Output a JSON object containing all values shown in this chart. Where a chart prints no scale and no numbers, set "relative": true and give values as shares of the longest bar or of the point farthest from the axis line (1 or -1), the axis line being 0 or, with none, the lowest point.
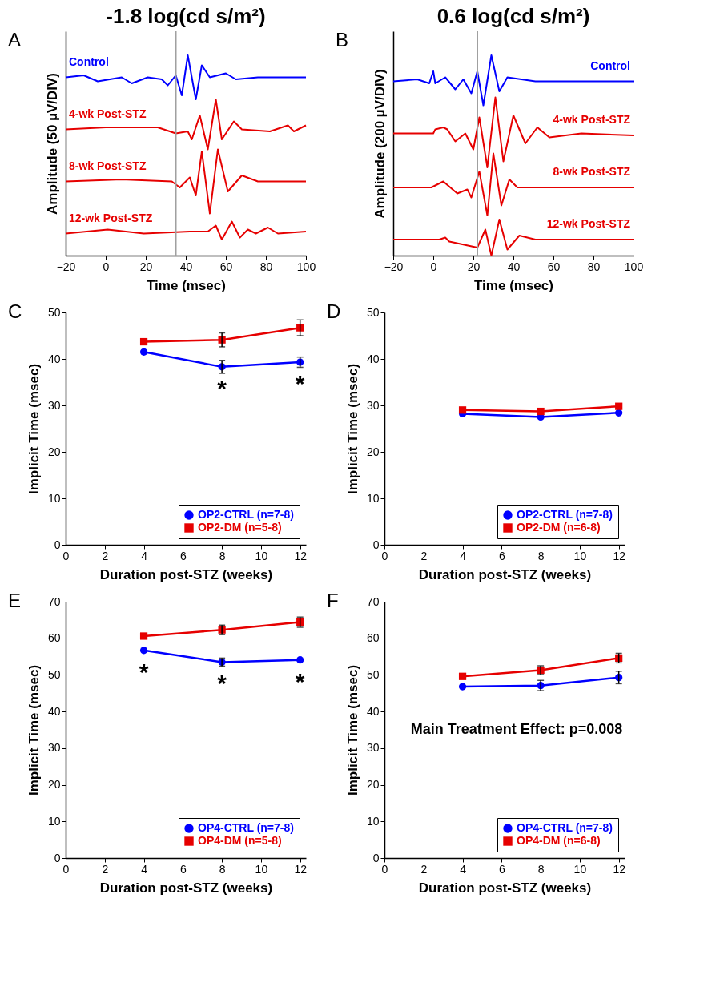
{
  "chart_data": [
    {
      "type": "line",
      "relative": true,
      "title": "-1.8 log(cd s/m²)",
      "xlabel": "Time (msec)",
      "ylabel": "Amplitude (50 µV/DIV)",
      "annotations": [
        "A"
      ],
      "xlim": [
        -20,
        100
      ],
      "xticks": [
        -20,
        0,
        20,
        40,
        60,
        80,
        100
      ],
      "ref_lines": [
        {
          "axis": "x",
          "value": 35,
          "color": "#a0a0a0"
        }
      ],
      "series": [
        {
          "name": "Control",
          "color": "#0000ff",
          "x": [
            -20,
            -11,
            -4,
            8,
            13,
            21,
            28,
            31,
            35,
            38,
            41,
            45,
            48,
            52,
            60,
            65,
            76,
            88,
            100
          ],
          "values": [
            0.89,
            0.9,
            0.87,
            0.89,
            0.86,
            0.89,
            0.88,
            0.85,
            0.9,
            0.8,
            1,
            0.78,
            0.95,
            0.89,
            0.91,
            0.88,
            0.89,
            0.89,
            0.89
          ]
        },
        {
          "name": "4-wk Post-STZ",
          "color": "#e60000",
          "x": [
            -20,
            0,
            26,
            35,
            41,
            43,
            47,
            51,
            55,
            58,
            64,
            68,
            82,
            91,
            94,
            100
          ],
          "values": [
            0.63,
            0.64,
            0.64,
            0.61,
            0.62,
            0.58,
            0.7,
            0.53,
            0.78,
            0.58,
            0.67,
            0.63,
            0.62,
            0.65,
            0.62,
            0.65
          ]
        },
        {
          "name": "8-wk Post-STZ",
          "color": "#e60000",
          "x": [
            -20,
            8,
            33,
            37,
            42,
            45,
            48,
            52,
            56,
            61,
            68,
            76,
            100
          ],
          "values": [
            0.37,
            0.38,
            0.37,
            0.34,
            0.39,
            0.3,
            0.52,
            0.21,
            0.53,
            0.32,
            0.4,
            0.37,
            0.37
          ]
        },
        {
          "name": "12-wk Post-STZ",
          "color": "#e60000",
          "x": [
            -20,
            1,
            19,
            42,
            51,
            55,
            58,
            63,
            67,
            71,
            75,
            81,
            86,
            100
          ],
          "values": [
            0.11,
            0.13,
            0.11,
            0.12,
            0.12,
            0.15,
            0.08,
            0.17,
            0.09,
            0.13,
            0.11,
            0.14,
            0.11,
            0.12
          ]
        }
      ]
    },
    {
      "type": "line",
      "relative": true,
      "title": "0.6 log(cd s/m²)",
      "xlabel": "Time (msec)",
      "ylabel": "Amplitude (200 µV/DIV)",
      "annotations": [
        "B"
      ],
      "xlim": [
        -20,
        100
      ],
      "xticks": [
        -20,
        0,
        20,
        40,
        60,
        80,
        100
      ],
      "ref_lines": [
        {
          "axis": "x",
          "value": 22,
          "color": "#a0a0a0"
        }
      ],
      "series": [
        {
          "name": "Control",
          "color": "#0000ff",
          "x": [
            -20,
            -8,
            -2,
            0,
            1,
            6,
            11,
            15,
            19,
            22,
            25,
            29,
            33,
            37,
            51,
            74,
            100
          ],
          "values": [
            0.87,
            0.88,
            0.86,
            0.92,
            0.86,
            0.89,
            0.83,
            0.88,
            0.81,
            0.92,
            0.75,
            1,
            0.82,
            0.89,
            0.87,
            0.87,
            0.87
          ]
        },
        {
          "name": "4-wk Post-STZ",
          "color": "#e60000",
          "x": [
            -20,
            0,
            1,
            5,
            7,
            11,
            16,
            20,
            23,
            27,
            31,
            35,
            40,
            46,
            52,
            58,
            74,
            100
          ],
          "values": [
            0.61,
            0.61,
            0.63,
            0.64,
            0.63,
            0.57,
            0.61,
            0.53,
            0.69,
            0.44,
            0.79,
            0.47,
            0.7,
            0.56,
            0.64,
            0.59,
            0.61,
            0.6
          ]
        },
        {
          "name": "8-wk Post-STZ",
          "color": "#e60000",
          "x": [
            -20,
            -1,
            5,
            12,
            17,
            19,
            23,
            27,
            30,
            34,
            38,
            42,
            100
          ],
          "values": [
            0.34,
            0.34,
            0.37,
            0.31,
            0.33,
            0.29,
            0.42,
            0.2,
            0.51,
            0.25,
            0.38,
            0.34,
            0.34
          ]
        },
        {
          "name": "12-wk Post-STZ",
          "color": "#e60000",
          "x": [
            -20,
            3,
            6,
            8,
            22,
            26,
            29,
            33,
            37,
            43,
            51,
            100
          ],
          "values": [
            0.08,
            0.08,
            0.09,
            0.07,
            0.04,
            0.13,
            0,
            0.18,
            0.03,
            0.1,
            0.08,
            0.08
          ]
        }
      ]
    },
    {
      "type": "line",
      "xlabel": "Duration post-STZ (weeks)",
      "ylabel": "Implicit Time (msec)",
      "annotations": [
        "C",
        {
          "text": "*",
          "x": 8,
          "y": 38.3
        },
        {
          "text": "*",
          "x": 12,
          "y": 39.3
        }
      ],
      "xlim": [
        0,
        12.3
      ],
      "xticks": [
        0,
        2,
        4,
        6,
        8,
        10,
        12
      ],
      "ylim": [
        0,
        50
      ],
      "yticks": [
        0,
        10,
        20,
        30,
        40,
        50
      ],
      "legend": "bottom right",
      "x": [
        4,
        8,
        12
      ],
      "series": [
        {
          "name": "OP2-CTRL (n=7-8)",
          "color": "#0000ff",
          "marker": "circle",
          "values": [
            41.5,
            38.3,
            39.3
          ],
          "errors": [
            null,
            1.4,
            1.1
          ]
        },
        {
          "name": "OP2-DM (n=5-8)",
          "color": "#e60000",
          "marker": "square",
          "values": [
            43.7,
            44.1,
            46.7
          ],
          "errors": [
            null,
            1.5,
            1.7
          ]
        }
      ]
    },
    {
      "type": "line",
      "xlabel": "Duration post-STZ (weeks)",
      "ylabel": "Implicit Time (msec)",
      "annotations": [
        "D"
      ],
      "xlim": [
        0,
        12.3
      ],
      "xticks": [
        0,
        2,
        4,
        6,
        8,
        10,
        12
      ],
      "ylim": [
        0,
        50
      ],
      "yticks": [
        0,
        10,
        20,
        30,
        40,
        50
      ],
      "legend": "bottom right",
      "x": [
        4,
        8,
        12
      ],
      "series": [
        {
          "name": "OP2-CTRL (n=7-8)",
          "color": "#0000ff",
          "marker": "circle",
          "values": [
            28.2,
            27.5,
            28.4
          ]
        },
        {
          "name": "OP2-DM (n=6-8)",
          "color": "#e60000",
          "marker": "square",
          "values": [
            29.0,
            28.7,
            29.8
          ]
        }
      ]
    },
    {
      "type": "line",
      "xlabel": "Duration post-STZ (weeks)",
      "ylabel": "Implicit Time (msec)",
      "annotations": [
        "E",
        {
          "text": "*",
          "x": 4,
          "y": 56.7
        },
        {
          "text": "*",
          "x": 8,
          "y": 53.5
        },
        {
          "text": "*",
          "x": 12,
          "y": 54.1
        }
      ],
      "xlim": [
        0,
        12.3
      ],
      "xticks": [
        0,
        2,
        4,
        6,
        8,
        10,
        12
      ],
      "ylim": [
        0,
        70
      ],
      "yticks": [
        0,
        10,
        20,
        30,
        40,
        50,
        60,
        70
      ],
      "legend": "bottom right",
      "x": [
        4,
        8,
        12
      ],
      "series": [
        {
          "name": "OP4-CTRL (n=7-8)",
          "color": "#0000ff",
          "marker": "circle",
          "values": [
            56.7,
            53.5,
            54.1
          ],
          "errors": [
            null,
            1.1,
            null
          ]
        },
        {
          "name": "OP4-DM (n=5-8)",
          "color": "#e60000",
          "marker": "square",
          "values": [
            60.6,
            62.3,
            64.4
          ],
          "errors": [
            null,
            1.3,
            1.4
          ]
        }
      ]
    },
    {
      "type": "line",
      "xlabel": "Duration post-STZ (weeks)",
      "ylabel": "Implicit Time (msec)",
      "annotations": [
        "F",
        "Main Treatment Effect: p=0.008"
      ],
      "xlim": [
        0,
        12.3
      ],
      "xticks": [
        0,
        2,
        4,
        6,
        8,
        10,
        12
      ],
      "ylim": [
        0,
        70
      ],
      "yticks": [
        0,
        10,
        20,
        30,
        40,
        50,
        60,
        70
      ],
      "legend": "bottom right",
      "x": [
        4,
        8,
        12
      ],
      "series": [
        {
          "name": "OP4-CTRL (n=7-8)",
          "color": "#0000ff",
          "marker": "circle",
          "values": [
            46.8,
            47.1,
            49.3
          ],
          "errors": [
            null,
            1.4,
            1.7
          ]
        },
        {
          "name": "OP4-DM (n=6-8)",
          "color": "#e60000",
          "marker": "square",
          "values": [
            49.6,
            51.3,
            54.6
          ],
          "errors": [
            null,
            1.2,
            1.3
          ]
        }
      ]
    }
  ]
}
